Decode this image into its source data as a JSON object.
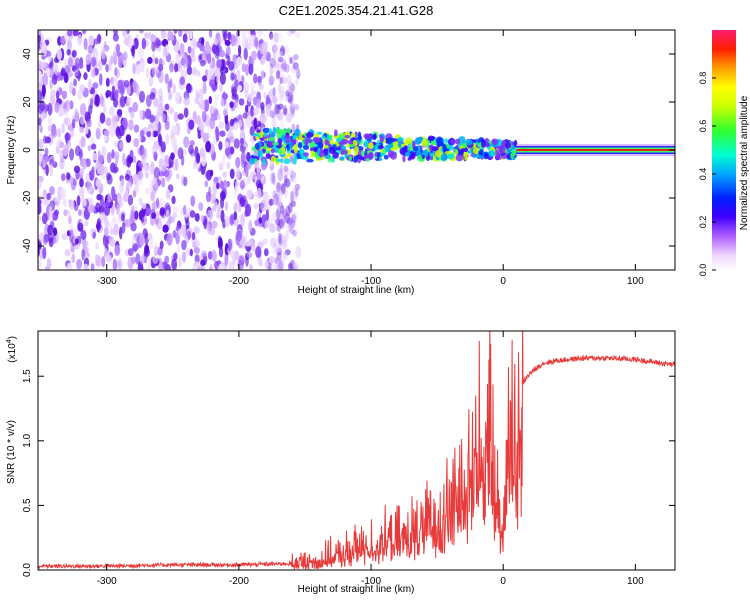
{
  "title": "C2E1.2025.354.21.41.G28",
  "colors": {
    "snr_line": "#e83a3a",
    "signal_core": "#e0201a"
  },
  "chart_data": [
    {
      "type": "heatmap",
      "name": "spectrogram",
      "xlabel": "Height of straight line (km)",
      "ylabel": "Frequency (Hz)",
      "xlim": [
        -352,
        130
      ],
      "ylim": [
        -50,
        50
      ],
      "x_ticks": [
        -300,
        -200,
        -100,
        0,
        100
      ],
      "x_tick_labels": [
        "-300",
        "-200",
        "-100",
        "0",
        "100"
      ],
      "y_ticks": [
        -40,
        -20,
        0,
        20,
        40
      ],
      "y_tick_labels": [
        "-40",
        "-20",
        "0",
        "20",
        "40"
      ],
      "colorbar": {
        "label": "Normalized spectral amplitude",
        "range": [
          0,
          1
        ],
        "ticks": [
          0.0,
          0.2,
          0.4,
          0.6,
          0.8
        ],
        "tick_labels": [
          "0.0",
          "0.2",
          "0.4",
          "0.6",
          "0.8"
        ]
      },
      "regions": [
        {
          "desc": "noise",
          "x_range": [
            -352,
            -155
          ],
          "freq_range": [
            -50,
            50
          ],
          "amplitude": 0.2
        },
        {
          "desc": "track",
          "x_range": [
            -190,
            10
          ],
          "center_freq": 2,
          "amplitude": 0.45
        },
        {
          "desc": "signal",
          "x_range": [
            10,
            130
          ],
          "center_freq": 0,
          "amplitude": 0.9
        }
      ]
    },
    {
      "type": "line",
      "name": "snr",
      "xlabel": "Height of straight line (km)",
      "ylabel": "SNR (10 * v/v)",
      "y_multiplier_label": "(x10",
      "y_multiplier_exp": "4",
      "xlim": [
        -352,
        130
      ],
      "ylim": [
        0.0,
        1.85
      ],
      "x_ticks": [
        -300,
        -200,
        -100,
        0,
        100
      ],
      "x_tick_labels": [
        "-300",
        "-200",
        "-100",
        "0",
        "100"
      ],
      "y_ticks": [
        0.0,
        0.5,
        1.0,
        1.5
      ],
      "y_tick_labels": [
        "0.0",
        "0.5",
        "1.0",
        "1.5"
      ],
      "series": [
        {
          "name": "SNR",
          "x": [
            -352,
            -300,
            -250,
            -200,
            -160,
            -140,
            -120,
            -110,
            -100,
            -90,
            -80,
            -70,
            -60,
            -50,
            -40,
            -30,
            -25,
            -20,
            -15,
            -10,
            -5,
            0,
            3,
            6,
            10,
            15,
            20,
            30,
            40,
            60,
            80,
            100,
            120,
            130
          ],
          "y": [
            0.03,
            0.03,
            0.04,
            0.04,
            0.05,
            0.08,
            0.14,
            0.18,
            0.22,
            0.24,
            0.26,
            0.3,
            0.36,
            0.42,
            0.55,
            0.7,
            0.85,
            1.0,
            1.05,
            1.1,
            0.6,
            0.25,
            1.35,
            1.2,
            1.0,
            1.45,
            1.52,
            1.6,
            1.62,
            1.64,
            1.64,
            1.63,
            1.6,
            1.59
          ]
        }
      ]
    }
  ]
}
